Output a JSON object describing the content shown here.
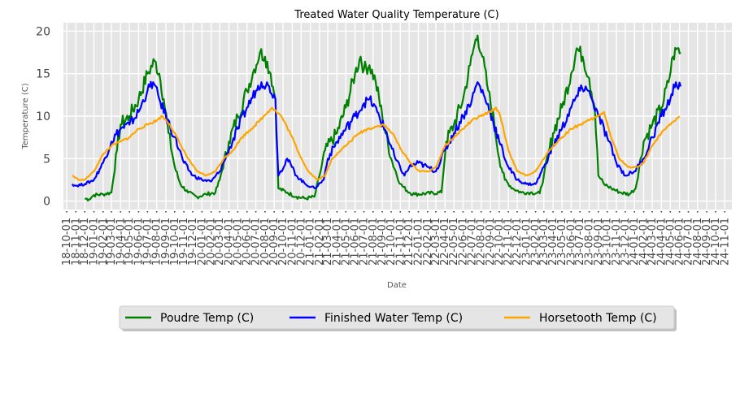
{
  "chart_data": {
    "type": "line",
    "title": "Treated Water Quality Temperature (C)",
    "xlabel": "Date",
    "ylabel": "Temperature (C)",
    "ylim": [
      -1,
      21
    ],
    "yticks": [
      0,
      5,
      10,
      15,
      20
    ],
    "xlim": [
      "2018-09-20",
      "2024-11-25"
    ],
    "grid": true,
    "legend_position": "bottom-center",
    "xtick_labels": [
      "18-10-01",
      "18-11-01",
      "18-12-01",
      "19-01-01",
      "19-02-01",
      "19-03-01",
      "19-04-01",
      "19-05-01",
      "19-06-01",
      "19-07-01",
      "19-08-01",
      "19-09-01",
      "19-10-01",
      "19-11-01",
      "19-12-01",
      "20-01-01",
      "20-02-01",
      "20-03-01",
      "20-04-01",
      "20-05-01",
      "20-06-01",
      "20-07-01",
      "20-08-01",
      "20-09-01",
      "20-10-01",
      "20-11-01",
      "20-12-01",
      "21-01-01",
      "21-02-01",
      "21-03-01",
      "21-04-01",
      "21-05-01",
      "21-06-01",
      "21-07-01",
      "21-08-01",
      "21-09-01",
      "21-10-01",
      "21-11-01",
      "21-12-01",
      "22-01-01",
      "22-02-01",
      "22-03-01",
      "22-04-01",
      "22-05-01",
      "22-06-01",
      "22-07-01",
      "22-08-01",
      "22-09-01",
      "22-10-01",
      "22-11-01",
      "22-12-01",
      "23-01-01",
      "23-02-01",
      "23-03-01",
      "23-04-01",
      "23-05-01",
      "23-06-01",
      "23-07-01",
      "23-08-01",
      "23-09-01",
      "23-10-01",
      "23-11-01",
      "23-12-01",
      "24-01-01",
      "24-02-01",
      "24-03-01",
      "24-04-01",
      "24-05-01",
      "24-06-01",
      "24-07-01",
      "24-08-01",
      "24-09-01",
      "24-10-01",
      "24-11-01"
    ],
    "series": [
      {
        "name": "Poudre Temp (C)",
        "color": "#008000",
        "points": [
          [
            "2018-12-01",
            0.3
          ],
          [
            "2018-12-15",
            0.2
          ],
          [
            "2019-01-01",
            0.7
          ],
          [
            "2019-02-01",
            0.8
          ],
          [
            "2019-03-01",
            1.0
          ],
          [
            "2019-03-20",
            6.0
          ],
          [
            "2019-04-01",
            9.0
          ],
          [
            "2019-05-01",
            10.0
          ],
          [
            "2019-06-01",
            12.0
          ],
          [
            "2019-07-01",
            15.0
          ],
          [
            "2019-07-25",
            16.5
          ],
          [
            "2019-08-10",
            15.0
          ],
          [
            "2019-08-25",
            12.0
          ],
          [
            "2019-09-10",
            8.0
          ],
          [
            "2019-10-01",
            4.0
          ],
          [
            "2019-10-20",
            2.0
          ],
          [
            "2019-11-15",
            1.0
          ],
          [
            "2019-12-15",
            0.5
          ],
          [
            "2020-01-15",
            0.8
          ],
          [
            "2020-02-15",
            1.0
          ],
          [
            "2020-03-01",
            2.5
          ],
          [
            "2020-04-01",
            7.0
          ],
          [
            "2020-05-01",
            10.0
          ],
          [
            "2020-06-01",
            13.0
          ],
          [
            "2020-06-25",
            15.5
          ],
          [
            "2020-07-15",
            17.5
          ],
          [
            "2020-08-01",
            17.0
          ],
          [
            "2020-08-20",
            15.0
          ],
          [
            "2020-09-05",
            12.0
          ],
          [
            "2020-09-15",
            1.5
          ],
          [
            "2020-10-15",
            1.0
          ],
          [
            "2020-11-15",
            0.5
          ],
          [
            "2020-12-15",
            0.3
          ],
          [
            "2021-01-15",
            0.5
          ],
          [
            "2021-02-01",
            3.0
          ],
          [
            "2021-02-20",
            6.0
          ],
          [
            "2021-04-01",
            8.0
          ],
          [
            "2021-05-01",
            11.0
          ],
          [
            "2021-06-01",
            15.0
          ],
          [
            "2021-06-20",
            17.0
          ],
          [
            "2021-07-01",
            15.5
          ],
          [
            "2021-07-20",
            16.0
          ],
          [
            "2021-08-10",
            14.0
          ],
          [
            "2021-09-01",
            10.0
          ],
          [
            "2021-10-01",
            5.0
          ],
          [
            "2021-11-01",
            2.0
          ],
          [
            "2021-12-01",
            1.0
          ],
          [
            "2021-12-20",
            0.8
          ],
          [
            "2022-03-20",
            1.0
          ],
          [
            "2022-04-05",
            7.0
          ],
          [
            "2022-05-01",
            9.0
          ],
          [
            "2022-06-01",
            12.0
          ],
          [
            "2022-06-25",
            16.0
          ],
          [
            "2022-07-10",
            18.5
          ],
          [
            "2022-07-20",
            19.5
          ],
          [
            "2022-08-05",
            17.0
          ],
          [
            "2022-08-25",
            13.0
          ],
          [
            "2022-09-15",
            9.0
          ],
          [
            "2022-10-01",
            5.0
          ],
          [
            "2022-10-20",
            2.5
          ],
          [
            "2022-11-15",
            1.5
          ],
          [
            "2022-12-15",
            1.0
          ],
          [
            "2023-01-15",
            1.0
          ],
          [
            "2023-02-15",
            0.9
          ],
          [
            "2023-03-01",
            3.0
          ],
          [
            "2023-04-01",
            8.0
          ],
          [
            "2023-05-01",
            11.0
          ],
          [
            "2023-06-01",
            15.0
          ],
          [
            "2023-06-20",
            18.0
          ],
          [
            "2023-07-10",
            17.0
          ],
          [
            "2023-08-01",
            14.5
          ],
          [
            "2023-08-20",
            11.0
          ],
          [
            "2023-09-01",
            3.0
          ],
          [
            "2023-09-20",
            2.0
          ],
          [
            "2023-10-15",
            1.5
          ],
          [
            "2023-11-15",
            1.0
          ],
          [
            "2023-12-15",
            0.8
          ],
          [
            "2024-01-05",
            1.5
          ],
          [
            "2024-02-01",
            7.0
          ],
          [
            "2024-03-01",
            9.0
          ],
          [
            "2024-04-01",
            11.0
          ],
          [
            "2024-04-25",
            14.0
          ],
          [
            "2024-05-10",
            17.0
          ],
          [
            "2024-05-25",
            18.0
          ],
          [
            "2024-06-05",
            17.5
          ]
        ]
      },
      {
        "name": "Finished Water Temp (C)",
        "color": "#0000ff",
        "points": [
          [
            "2018-10-20",
            2.0
          ],
          [
            "2018-11-01",
            1.8
          ],
          [
            "2018-12-01",
            2.0
          ],
          [
            "2019-01-01",
            2.5
          ],
          [
            "2019-02-01",
            4.5
          ],
          [
            "2019-03-01",
            7.0
          ],
          [
            "2019-04-01",
            8.5
          ],
          [
            "2019-05-01",
            9.0
          ],
          [
            "2019-06-01",
            10.5
          ],
          [
            "2019-07-01",
            13.0
          ],
          [
            "2019-07-20",
            14.0
          ],
          [
            "2019-08-10",
            12.0
          ],
          [
            "2019-09-01",
            10.0
          ],
          [
            "2019-10-01",
            7.5
          ],
          [
            "2019-11-01",
            4.5
          ],
          [
            "2019-12-01",
            3.0
          ],
          [
            "2020-01-01",
            2.5
          ],
          [
            "2020-02-01",
            2.3
          ],
          [
            "2020-03-01",
            3.5
          ],
          [
            "2020-04-01",
            6.0
          ],
          [
            "2020-05-01",
            8.5
          ],
          [
            "2020-06-01",
            11.0
          ],
          [
            "2020-07-01",
            13.0
          ],
          [
            "2020-07-20",
            14.0
          ],
          [
            "2020-08-15",
            13.5
          ],
          [
            "2020-09-05",
            12.0
          ],
          [
            "2020-09-15",
            3.0
          ],
          [
            "2020-10-15",
            5.0
          ],
          [
            "2020-11-15",
            3.0
          ],
          [
            "2020-12-15",
            2.0
          ],
          [
            "2021-01-15",
            1.5
          ],
          [
            "2021-02-15",
            2.5
          ],
          [
            "2021-03-01",
            5.0
          ],
          [
            "2021-04-01",
            7.0
          ],
          [
            "2021-05-01",
            8.5
          ],
          [
            "2021-06-01",
            10.0
          ],
          [
            "2021-07-01",
            11.5
          ],
          [
            "2021-07-20",
            12.0
          ],
          [
            "2021-08-15",
            10.5
          ],
          [
            "2021-09-15",
            8.0
          ],
          [
            "2021-10-15",
            5.0
          ],
          [
            "2021-11-15",
            3.0
          ],
          [
            "2021-12-01",
            4.0
          ],
          [
            "2022-01-01",
            4.5
          ],
          [
            "2022-02-01",
            4.0
          ],
          [
            "2022-03-01",
            3.5
          ],
          [
            "2022-04-01",
            6.0
          ],
          [
            "2022-05-01",
            8.0
          ],
          [
            "2022-06-01",
            10.0
          ],
          [
            "2022-07-01",
            12.0
          ],
          [
            "2022-07-20",
            14.0
          ],
          [
            "2022-08-10",
            12.5
          ],
          [
            "2022-09-01",
            10.5
          ],
          [
            "2022-10-01",
            7.0
          ],
          [
            "2022-11-01",
            4.0
          ],
          [
            "2022-12-01",
            2.5
          ],
          [
            "2023-01-01",
            2.0
          ],
          [
            "2023-02-01",
            2.0
          ],
          [
            "2023-03-01",
            4.0
          ],
          [
            "2023-04-01",
            6.5
          ],
          [
            "2023-05-01",
            8.5
          ],
          [
            "2023-06-01",
            11.0
          ],
          [
            "2023-07-01",
            13.0
          ],
          [
            "2023-07-20",
            13.5
          ],
          [
            "2023-08-10",
            12.0
          ],
          [
            "2023-09-01",
            10.0
          ],
          [
            "2023-10-01",
            7.5
          ],
          [
            "2023-11-01",
            4.5
          ],
          [
            "2023-12-01",
            3.0
          ],
          [
            "2024-01-01",
            3.5
          ],
          [
            "2024-02-01",
            5.0
          ],
          [
            "2024-03-01",
            7.5
          ],
          [
            "2024-04-01",
            10.0
          ],
          [
            "2024-05-01",
            12.0
          ],
          [
            "2024-05-20",
            14.0
          ],
          [
            "2024-06-05",
            13.5
          ]
        ]
      },
      {
        "name": "Horsetooth Temp (C)",
        "color": "#ffa500",
        "points": [
          [
            "2018-10-20",
            3.0
          ],
          [
            "2018-11-10",
            2.5
          ],
          [
            "2018-12-01",
            2.5
          ],
          [
            "2019-01-01",
            3.5
          ],
          [
            "2019-02-01",
            5.5
          ],
          [
            "2019-03-01",
            6.5
          ],
          [
            "2019-04-01",
            7.0
          ],
          [
            "2019-05-01",
            7.5
          ],
          [
            "2019-06-01",
            8.5
          ],
          [
            "2019-07-01",
            9.0
          ],
          [
            "2019-08-01",
            9.5
          ],
          [
            "2019-08-20",
            10.0
          ],
          [
            "2019-09-15",
            9.0
          ],
          [
            "2019-10-15",
            7.0
          ],
          [
            "2019-11-15",
            5.0
          ],
          [
            "2019-12-15",
            3.5
          ],
          [
            "2020-01-15",
            3.0
          ],
          [
            "2020-02-15",
            3.5
          ],
          [
            "2020-03-15",
            5.0
          ],
          [
            "2020-04-15",
            6.0
          ],
          [
            "2020-05-15",
            7.5
          ],
          [
            "2020-06-15",
            8.5
          ],
          [
            "2020-07-15",
            9.5
          ],
          [
            "2020-08-10",
            10.5
          ],
          [
            "2020-08-25",
            11.0
          ],
          [
            "2020-09-25",
            10.0
          ],
          [
            "2020-10-25",
            8.0
          ],
          [
            "2020-11-25",
            5.5
          ],
          [
            "2020-12-25",
            3.5
          ],
          [
            "2021-01-25",
            2.5
          ],
          [
            "2021-02-20",
            3.0
          ],
          [
            "2021-03-15",
            5.0
          ],
          [
            "2021-04-15",
            6.0
          ],
          [
            "2021-05-15",
            7.0
          ],
          [
            "2021-06-15",
            8.0
          ],
          [
            "2021-07-15",
            8.5
          ],
          [
            "2021-08-15",
            8.8
          ],
          [
            "2021-09-05",
            9.0
          ],
          [
            "2021-10-05",
            8.0
          ],
          [
            "2021-11-05",
            6.0
          ],
          [
            "2021-12-05",
            4.5
          ],
          [
            "2022-01-05",
            3.5
          ],
          [
            "2022-02-05",
            3.5
          ],
          [
            "2022-03-01",
            4.0
          ],
          [
            "2022-04-01",
            6.5
          ],
          [
            "2022-05-01",
            7.5
          ],
          [
            "2022-06-01",
            8.5
          ],
          [
            "2022-07-01",
            9.5
          ],
          [
            "2022-08-01",
            10.0
          ],
          [
            "2022-09-01",
            10.5
          ],
          [
            "2022-09-20",
            11.0
          ],
          [
            "2022-10-05",
            10.0
          ],
          [
            "2022-11-01",
            6.0
          ],
          [
            "2022-12-01",
            3.5
          ],
          [
            "2023-01-01",
            3.0
          ],
          [
            "2023-02-01",
            3.5
          ],
          [
            "2023-03-01",
            5.0
          ],
          [
            "2023-04-01",
            6.5
          ],
          [
            "2023-05-01",
            7.5
          ],
          [
            "2023-06-01",
            8.5
          ],
          [
            "2023-07-01",
            9.0
          ],
          [
            "2023-08-01",
            9.5
          ],
          [
            "2023-09-01",
            10.0
          ],
          [
            "2023-09-20",
            10.5
          ],
          [
            "2023-10-10",
            8.0
          ],
          [
            "2023-11-10",
            5.0
          ],
          [
            "2023-12-10",
            4.0
          ],
          [
            "2024-01-10",
            4.0
          ],
          [
            "2024-02-01",
            4.5
          ],
          [
            "2024-03-01",
            6.5
          ],
          [
            "2024-04-01",
            8.0
          ],
          [
            "2024-05-01",
            9.0
          ],
          [
            "2024-06-01",
            10.0
          ]
        ]
      }
    ]
  }
}
